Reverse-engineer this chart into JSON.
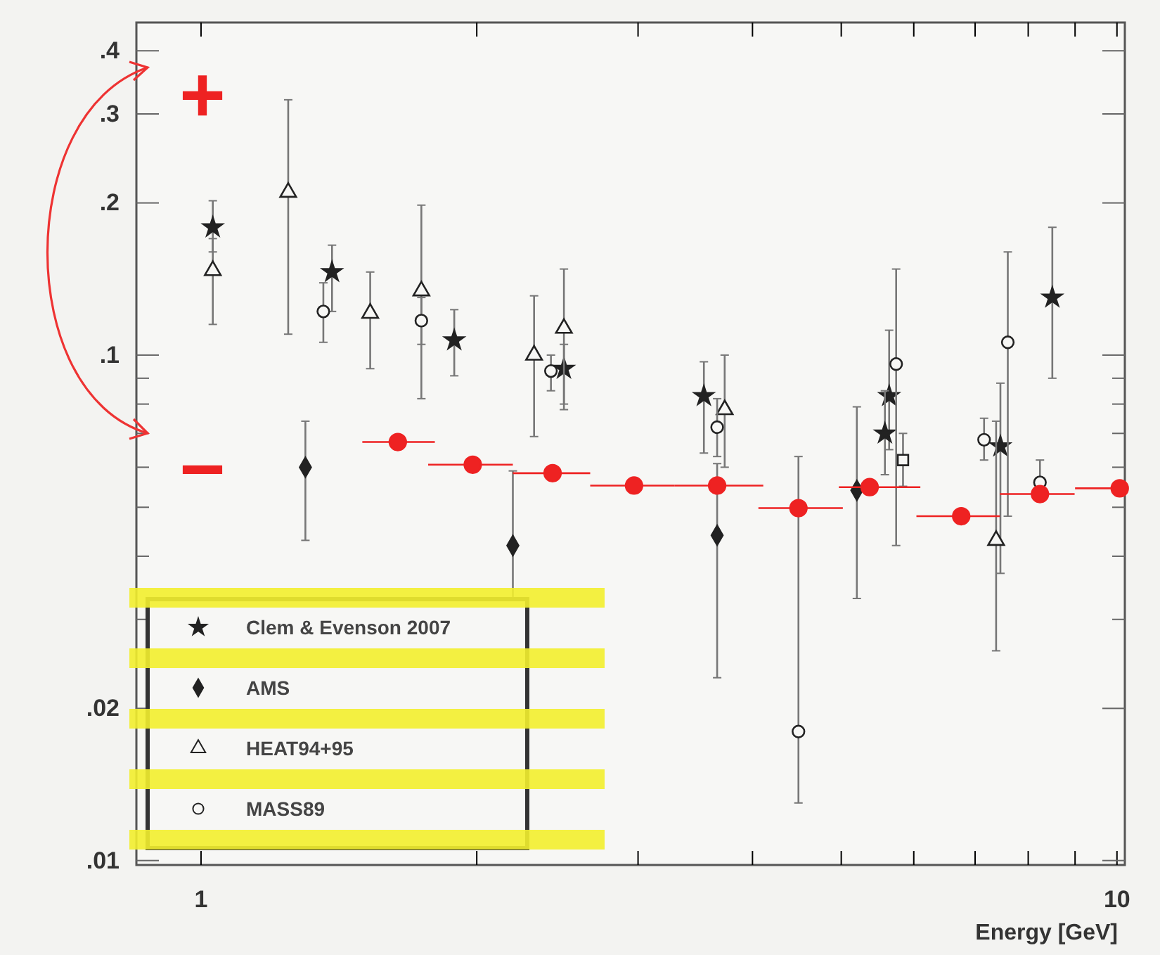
{
  "chart_data": {
    "type": "scatter",
    "xlabel": "Energy [GeV]",
    "log": "xy",
    "xlim": [
      0.85,
      10.2
    ],
    "ylim": [
      0.0098,
      0.455
    ],
    "xticks": [
      {
        "value": 1,
        "label": "1"
      },
      {
        "value": 2,
        "label": null
      },
      {
        "value": 3,
        "label": null
      },
      {
        "value": 4,
        "label": null
      },
      {
        "value": 5,
        "label": null
      },
      {
        "value": 6,
        "label": null
      },
      {
        "value": 7,
        "label": null
      },
      {
        "value": 8,
        "label": null
      },
      {
        "value": 9,
        "label": null
      },
      {
        "value": 10,
        "label": "10"
      }
    ],
    "yticks": [
      {
        "value": 0.01,
        "label": ".01"
      },
      {
        "value": 0.02,
        "label": ".02"
      },
      {
        "value": 0.03,
        "label": null
      },
      {
        "value": 0.04,
        "label": null
      },
      {
        "value": 0.05,
        "label": null
      },
      {
        "value": 0.06,
        "label": null
      },
      {
        "value": 0.07,
        "label": null
      },
      {
        "value": 0.08,
        "label": null
      },
      {
        "value": 0.09,
        "label": null
      },
      {
        "value": 0.1,
        "label": ".1"
      },
      {
        "value": 0.2,
        "label": ".2"
      },
      {
        "value": 0.3,
        "label": ".3"
      },
      {
        "value": 0.4,
        "label": ".4"
      }
    ],
    "legend": "bottom left",
    "grid": false,
    "annotations": [
      "+",
      "−"
    ],
    "series": [
      {
        "name": "Clem & Evenson 2007",
        "color": "#222222",
        "marker": "star",
        "x": [
          1.03,
          1.39,
          1.89,
          2.49,
          3.54,
          5.64,
          5.58,
          7.46,
          8.5
        ],
        "values": [
          0.179,
          0.146,
          0.107,
          0.094,
          0.083,
          0.083,
          0.07,
          0.066,
          0.13
        ],
        "errors": [
          [
            0.16,
            0.202
          ],
          [
            0.122,
            0.165
          ],
          [
            0.091,
            0.123
          ],
          [
            0.08,
            0.105
          ],
          [
            0.064,
            0.097
          ],
          [
            0.065,
            0.112
          ],
          [
            0.058,
            0.085
          ],
          [
            0.037,
            0.088
          ],
          [
            0.09,
            0.179
          ]
        ]
      },
      {
        "name": "AMS",
        "color": "#222222",
        "marker": "diamond",
        "x": [
          1.3,
          2.19,
          3.66,
          5.2
        ],
        "values": [
          0.06,
          0.042,
          0.044,
          0.054
        ],
        "errors": [
          [
            0.043,
            0.074
          ],
          [
            0.033,
            0.059
          ],
          [
            0.023,
            0.061
          ],
          [
            0.033,
            0.079
          ]
        ]
      },
      {
        "name": "HEAT94+95",
        "color": "#222222",
        "marker": "triangle",
        "x": [
          1.03,
          1.245,
          1.53,
          1.74,
          2.31,
          2.49,
          3.73,
          7.38
        ],
        "values": [
          0.147,
          0.21,
          0.121,
          0.134,
          0.1,
          0.113,
          0.078,
          0.043
        ],
        "errors": [
          [
            0.115,
            0.17
          ],
          [
            0.11,
            0.32
          ],
          [
            0.094,
            0.146
          ],
          [
            0.082,
            0.198
          ],
          [
            0.069,
            0.131
          ],
          [
            0.078,
            0.148
          ],
          [
            0.06,
            0.1
          ],
          [
            0.026,
            0.074
          ]
        ]
      },
      {
        "name": "MASS89",
        "color": "#222222",
        "marker": "circle",
        "x": [
          1.36,
          1.74,
          2.41,
          3.66,
          4.49,
          5.74,
          7.16,
          7.6,
          8.24
        ],
        "values": [
          0.122,
          0.117,
          0.093,
          0.072,
          0.018,
          0.096,
          0.068,
          0.106,
          0.056
        ],
        "errors": [
          [
            0.106,
            0.139
          ],
          [
            0.105,
            0.13
          ],
          [
            0.085,
            0.1
          ],
          [
            0.063,
            0.082
          ],
          [
            0.013,
            0.063
          ],
          [
            0.042,
            0.148
          ],
          [
            0.062,
            0.075
          ],
          [
            0.048,
            0.16
          ],
          [
            0.052,
            0.062
          ]
        ]
      },
      {
        "color": "#222222",
        "marker": "square",
        "x": [
          5.84
        ],
        "values": [
          0.062
        ],
        "errors": [
          [
            0.055,
            0.07
          ]
        ]
      },
      {
        "color": "#ee2222",
        "marker": "circle",
        "x": [
          1.64,
          1.98,
          2.42,
          2.97,
          3.66,
          4.49,
          5.37,
          6.76,
          8.24,
          10.07
        ],
        "values": [
          0.0673,
          0.0607,
          0.0584,
          0.0552,
          0.0552,
          0.0498,
          0.0548,
          0.048,
          0.0531,
          0.0545
        ],
        "xerrors": [
          [
            1.5,
            1.8
          ],
          [
            1.77,
            2.19
          ],
          [
            2.19,
            2.66
          ],
          [
            2.66,
            3.29
          ],
          [
            3.29,
            4.11
          ],
          [
            4.06,
            5.02
          ],
          [
            4.97,
            6.1
          ],
          [
            6.04,
            7.45
          ],
          [
            7.45,
            8.99
          ],
          [
            9.0,
            10.2
          ]
        ]
      }
    ]
  }
}
